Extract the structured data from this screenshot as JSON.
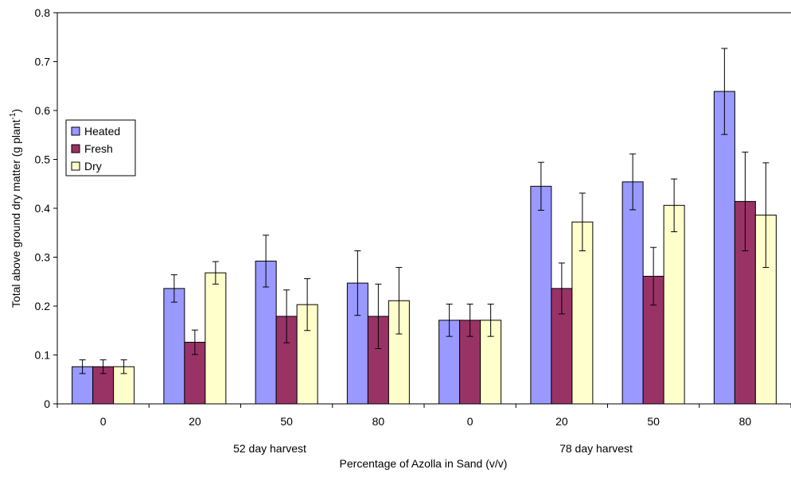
{
  "chart_data": {
    "type": "bar",
    "categories": [
      "0",
      "20",
      "50",
      "80",
      "0",
      "20",
      "50",
      "80"
    ],
    "groups": [
      {
        "label": "52 day harvest",
        "categories": [
          "0",
          "20",
          "50",
          "80"
        ]
      },
      {
        "label": "78 day harvest",
        "categories": [
          "0",
          "20",
          "50",
          "80"
        ]
      }
    ],
    "series": [
      {
        "name": "Heated",
        "color": "#9999ff",
        "values": [
          0.076,
          0.236,
          0.292,
          0.247,
          0.171,
          0.445,
          0.454,
          0.639
        ],
        "errors": [
          0.014,
          0.028,
          0.053,
          0.066,
          0.033,
          0.049,
          0.057,
          0.088
        ]
      },
      {
        "name": "Fresh",
        "color": "#993366",
        "values": [
          0.076,
          0.126,
          0.179,
          0.179,
          0.171,
          0.236,
          0.261,
          0.414
        ],
        "errors": [
          0.014,
          0.025,
          0.054,
          0.066,
          0.033,
          0.052,
          0.059,
          0.101
        ]
      },
      {
        "name": "Dry",
        "color": "#ffffcc",
        "values": [
          0.076,
          0.268,
          0.203,
          0.211,
          0.171,
          0.372,
          0.406,
          0.386
        ],
        "errors": [
          0.014,
          0.023,
          0.053,
          0.068,
          0.033,
          0.059,
          0.054,
          0.107
        ]
      }
    ],
    "xlabel": "Percentage of Azolla in Sand (v/v)",
    "ylabel": "Total above ground dry matter (g plant",
    "ylabel_superscript": "-1",
    "ylabel_suffix": ")",
    "ylim": [
      0,
      0.8
    ],
    "yticks": [
      "0",
      "0.1",
      "0.2",
      "0.3",
      "0.4",
      "0.5",
      "0.6",
      "0.7",
      "0.8"
    ],
    "legend_position": "left"
  }
}
